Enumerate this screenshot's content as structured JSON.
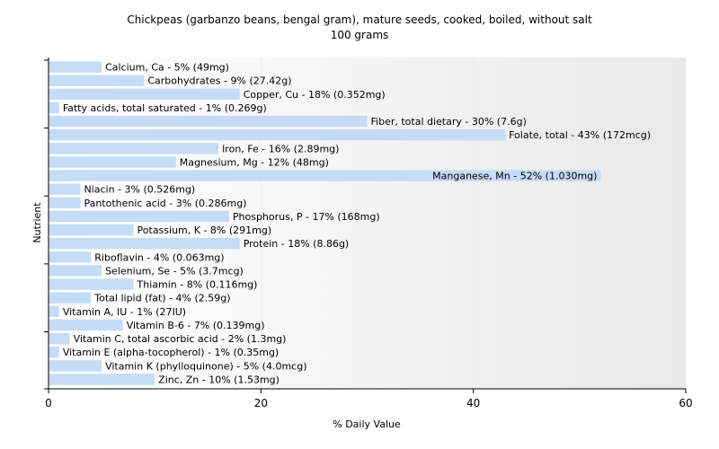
{
  "chart_data": {
    "type": "bar",
    "orientation": "horizontal",
    "title": "Chickpeas (garbanzo beans, bengal gram), mature seeds, cooked, boiled, without salt",
    "subtitle": "100 grams",
    "xlabel": "% Daily Value",
    "ylabel": "Nutrient",
    "xlim": [
      0,
      60
    ],
    "xticks": [
      0,
      20,
      40,
      60
    ],
    "grid": false,
    "bar_color": "#c6dcf6",
    "categories": [
      "Calcium, Ca",
      "Carbohydrates",
      "Copper, Cu",
      "Fatty acids, total saturated",
      "Fiber, total dietary",
      "Folate, total",
      "Iron, Fe",
      "Magnesium, Mg",
      "Manganese, Mn",
      "Niacin",
      "Pantothenic acid",
      "Phosphorus, P",
      "Potassium, K",
      "Protein",
      "Riboflavin",
      "Selenium, Se",
      "Thiamin",
      "Total lipid (fat)",
      "Vitamin A, IU",
      "Vitamin B-6",
      "Vitamin C, total ascorbic acid",
      "Vitamin E (alpha-tocopherol)",
      "Vitamin K (phylloquinone)",
      "Zinc, Zn"
    ],
    "values": [
      5,
      9,
      18,
      1,
      30,
      43,
      16,
      12,
      52,
      3,
      3,
      17,
      8,
      18,
      4,
      5,
      8,
      4,
      1,
      7,
      2,
      1,
      5,
      10
    ],
    "labels": [
      "Calcium, Ca - 5% (49mg)",
      "Carbohydrates - 9% (27.42g)",
      "Copper, Cu - 18% (0.352mg)",
      "Fatty acids, total saturated - 1% (0.269g)",
      "Fiber, total dietary - 30% (7.6g)",
      "Folate, total - 43% (172mcg)",
      "Iron, Fe - 16% (2.89mg)",
      "Magnesium, Mg - 12% (48mg)",
      "Manganese, Mn - 52% (1.030mg)",
      "Niacin - 3% (0.526mg)",
      "Pantothenic acid - 3% (0.286mg)",
      "Phosphorus, P - 17% (168mg)",
      "Potassium, K - 8% (291mg)",
      "Protein - 18% (8.86g)",
      "Riboflavin - 4% (0.063mg)",
      "Selenium, Se - 5% (3.7mcg)",
      "Thiamin - 8% (0.116mg)",
      "Total lipid (fat) - 4% (2.59g)",
      "Vitamin A, IU - 1% (27IU)",
      "Vitamin B-6 - 7% (0.139mg)",
      "Vitamin C, total ascorbic acid - 2% (1.3mg)",
      "Vitamin E (alpha-tocopherol) - 1% (0.35mg)",
      "Vitamin K (phylloquinone) - 5% (4.0mcg)",
      "Zinc, Zn - 10% (1.53mg)"
    ]
  }
}
